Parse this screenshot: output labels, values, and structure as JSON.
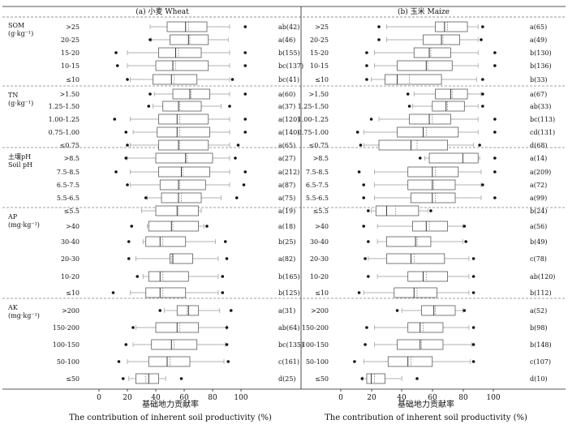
{
  "chart_data": {
    "type": "boxplot",
    "xlabel_cn": "基础地力贡献率",
    "xlabel_en": "The contribution of inherent soil productivity (%)",
    "x_range": [
      0,
      100
    ],
    "x_ticks": [
      "0",
      "20",
      "40",
      "60",
      "80",
      "100"
    ],
    "panels": [
      {
        "title": "(a) 小麦 Wheat",
        "groups": [
          {
            "name": "SOM",
            "unit": "(g·kg⁻¹)",
            "items": [
              {
                "cat": ">25",
                "ann": "ab(42)",
                "min": 36,
                "q1": 48,
                "med": 61,
                "mean": 63,
                "q3": 76,
                "max": 92,
                "out": [
                  103
                ]
              },
              {
                "cat": "20-25",
                "ann": "a(46)",
                "min": 37,
                "q1": 50,
                "med": 63,
                "mean": 64,
                "q3": 77,
                "max": 91,
                "out": [
                  36
                ]
              },
              {
                "cat": "15-20",
                "ann": "b(155)",
                "min": 20,
                "q1": 42,
                "med": 54,
                "mean": 56,
                "q3": 72,
                "max": 92,
                "out": [
                  12,
                  103
                ]
              },
              {
                "cat": "10-15",
                "ann": "bc(137)",
                "min": 20,
                "q1": 40,
                "med": 52,
                "mean": 54,
                "q3": 77,
                "max": 92,
                "out": [
                  13,
                  103
                ]
              },
              {
                "cat": "≤10",
                "ann": "bc(41)",
                "min": 22,
                "q1": 38,
                "med": 51,
                "mean": 53,
                "q3": 69,
                "max": 92,
                "out": [
                  20,
                  94
                ]
              }
            ]
          },
          {
            "name": "TN",
            "unit": "(g·kg⁻¹)",
            "items": [
              {
                "cat": ">1.50",
                "ann": "a(60)",
                "min": 39,
                "q1": 52,
                "med": 64,
                "mean": 65,
                "q3": 78,
                "max": 92,
                "out": [
                  36,
                  103
                ]
              },
              {
                "cat": "1.25-1.50",
                "ann": "a(37)",
                "min": 38,
                "q1": 45,
                "med": 56,
                "mean": 57,
                "q3": 72,
                "max": 86,
                "out": [
                  35,
                  92
                ]
              },
              {
                "cat": "1.00-1.25",
                "ann": "a(120)",
                "min": 22,
                "q1": 42,
                "med": 55,
                "mean": 57,
                "q3": 77,
                "max": 92,
                "out": [
                  11,
                  103
                ]
              },
              {
                "cat": "0.75-1.00",
                "ann": "a(140)",
                "min": 24,
                "q1": 41,
                "med": 55,
                "mean": 57,
                "q3": 78,
                "max": 92,
                "out": [
                  19,
                  103
                ]
              },
              {
                "cat": "≤0.75",
                "ann": "a(65)",
                "min": 22,
                "q1": 42,
                "med": 56,
                "mean": 57,
                "q3": 77,
                "max": 92,
                "out": [
                  20,
                  98
                ]
              }
            ]
          },
          {
            "name": "土壤pH",
            "unit": "Soil pH",
            "items": [
              {
                "cat": ">8.5",
                "ann": "a(27)",
                "min": 20,
                "q1": 40,
                "med": 61,
                "mean": 62,
                "q3": 80,
                "max": 92,
                "out": [
                  19,
                  96
                ]
              },
              {
                "cat": "7.5-8.5",
                "ann": "a(212)",
                "min": 22,
                "q1": 42,
                "med": 58,
                "mean": 59,
                "q3": 78,
                "max": 92,
                "out": [
                  12,
                  103
                ]
              },
              {
                "cat": "6.5-7.5",
                "ann": "a(87)",
                "min": 22,
                "q1": 43,
                "med": 56,
                "mean": 57,
                "q3": 75,
                "max": 92,
                "out": [
                  20,
                  102
                ]
              },
              {
                "cat": "5.5-6.5",
                "ann": "a(75)",
                "min": 34,
                "q1": 44,
                "med": 56,
                "mean": 58,
                "q3": 72,
                "max": 86,
                "out": [
                  33,
                  97
                ]
              },
              {
                "cat": "≤5.5",
                "ann": "a(19)",
                "min": 30,
                "q1": 40,
                "med": 55,
                "mean": 56,
                "q3": 70,
                "max": 72,
                "out": []
              }
            ]
          },
          {
            "name": "AP",
            "unit": "(mg·kg⁻¹)",
            "items": [
              {
                "cat": ">40",
                "ann": "a(18)",
                "min": 34,
                "q1": 35,
                "med": 51,
                "mean": 52,
                "q3": 70,
                "max": 74,
                "out": [
                  23,
                  76
                ]
              },
              {
                "cat": "30-40",
                "ann": "b(25)",
                "min": 31,
                "q1": 33,
                "med": 43,
                "mean": 45,
                "q3": 61,
                "max": 82,
                "out": [
                  21,
                  89
                ]
              },
              {
                "cat": "20-30",
                "ann": "a(82)",
                "min": 26,
                "q1": 50,
                "med": 52,
                "mean": 51,
                "q3": 66,
                "max": 84,
                "out": [
                  21,
                  90
                ]
              },
              {
                "cat": "10-20",
                "ann": "b(165)",
                "min": 31,
                "q1": 35,
                "med": 43,
                "mean": 45,
                "q3": 63,
                "max": 84,
                "out": [
                  27,
                  87
                ]
              },
              {
                "cat": "≤10",
                "ann": "b(125)",
                "min": 22,
                "q1": 33,
                "med": 43,
                "mean": 45,
                "q3": 61,
                "max": 84,
                "out": [
                  10,
                  87
                ]
              }
            ]
          },
          {
            "name": "AK",
            "unit": "(mg·kg⁻¹)",
            "items": [
              {
                "cat": ">200",
                "ann": "a(31)",
                "min": 46,
                "q1": 55,
                "med": 63,
                "mean": 62,
                "q3": 70,
                "max": 85,
                "out": [
                  43,
                  93
                ]
              },
              {
                "cat": "150-200",
                "ann": "ab(64)",
                "min": 26,
                "q1": 40,
                "med": 55,
                "mean": 57,
                "q3": 70,
                "max": 90,
                "out": [
                  24,
                  90
                ]
              },
              {
                "cat": "100-150",
                "ann": "bc(135)",
                "min": 24,
                "q1": 37,
                "med": 51,
                "mean": 53,
                "q3": 69,
                "max": 89,
                "out": [
                  19,
                  90
                ]
              },
              {
                "cat": "50-100",
                "ann": "c(161)",
                "min": 20,
                "q1": 35,
                "med": 48,
                "mean": 50,
                "q3": 64,
                "max": 88,
                "out": [
                  14,
                  91
                ]
              },
              {
                "cat": "≤50",
                "ann": "d(25)",
                "min": 21,
                "q1": 26,
                "med": 35,
                "mean": 33,
                "q3": 42,
                "max": 47,
                "out": [
                  17,
                  58
                ]
              }
            ]
          }
        ]
      },
      {
        "title": "(b) 玉米 Maize",
        "groups": [
          {
            "name": "SOM",
            "unit": "(g·kg⁻¹)",
            "items": [
              {
                "cat": ">25",
                "ann": "a(65)",
                "min": 30,
                "q1": 62,
                "med": 68,
                "mean": 70,
                "q3": 83,
                "max": 90,
                "out": [
                  25,
                  93
                ]
              },
              {
                "cat": "20-25",
                "ann": "a(49)",
                "min": 30,
                "q1": 54,
                "med": 66,
                "mean": 67,
                "q3": 78,
                "max": 90,
                "out": [
                  25,
                  92
                ]
              },
              {
                "cat": "15-20",
                "ann": "b(130)",
                "min": 22,
                "q1": 48,
                "med": 58,
                "mean": 59,
                "q3": 72,
                "max": 90,
                "out": [
                  17,
                  101
                ]
              },
              {
                "cat": "10-15",
                "ann": "b(136)",
                "min": 22,
                "q1": 37,
                "med": 56,
                "mean": 57,
                "q3": 73,
                "max": 90,
                "out": [
                  17,
                  101
                ]
              },
              {
                "cat": "≤10",
                "ann": "b(33)",
                "min": 20,
                "q1": 29,
                "med": 37,
                "mean": 45,
                "q3": 66,
                "max": 89,
                "out": [
                  17,
                  93
                ]
              }
            ]
          },
          {
            "name": "TN",
            "unit": "(g·kg⁻¹)",
            "items": [
              {
                "cat": ">1.50",
                "ann": "a(67)",
                "min": 48,
                "q1": 62,
                "med": 72,
                "mean": 73,
                "q3": 83,
                "max": 92,
                "out": [
                  44,
                  93
                ]
              },
              {
                "cat": "1.25-1.50",
                "ann": "ab(33)",
                "min": 47,
                "q1": 60,
                "med": 69,
                "mean": 70,
                "q3": 81,
                "max": 90,
                "out": [
                  45,
                  93
                ]
              },
              {
                "cat": "1.00-1.25",
                "ann": "bc(113)",
                "min": 25,
                "q1": 45,
                "med": 58,
                "mean": 60,
                "q3": 72,
                "max": 90,
                "out": [
                  20,
                  101
                ]
              },
              {
                "cat": "0.75-1.00",
                "ann": "cd(131)",
                "min": 15,
                "q1": 37,
                "med": 54,
                "mean": 56,
                "q3": 77,
                "max": 90,
                "out": [
                  11,
                  101
                ]
              },
              {
                "cat": "≤0.75",
                "ann": "d(68)",
                "min": 15,
                "q1": 25,
                "med": 46,
                "mean": 50,
                "q3": 70,
                "max": 87,
                "out": [
                  13,
                  91
                ]
              }
            ]
          },
          {
            "name": "土壤pH",
            "unit": "Soil pH",
            "items": [
              {
                "cat": ">8.5",
                "ann": "a(14)",
                "min": 55,
                "q1": 58,
                "med": 80,
                "mean": 80,
                "q3": 90,
                "max": 91,
                "out": [
                  52,
                  101
                ]
              },
              {
                "cat": "7.5-8.5",
                "ann": "a(209)",
                "min": 22,
                "q1": 44,
                "med": 60,
                "mean": 62,
                "q3": 77,
                "max": 92,
                "out": [
                  12,
                  101
                ]
              },
              {
                "cat": "6.5-7.5",
                "ann": "a(72)",
                "min": 22,
                "q1": 44,
                "med": 60,
                "mean": 61,
                "q3": 75,
                "max": 92,
                "out": [
                  15,
                  93
                ]
              },
              {
                "cat": "5.5-6.5",
                "ann": "a(99)",
                "min": 22,
                "q1": 46,
                "med": 60,
                "mean": 62,
                "q3": 75,
                "max": 92,
                "out": [
                  15,
                  101
                ]
              },
              {
                "cat": "≤5.5",
                "ann": "b(24)",
                "min": 20,
                "q1": 23,
                "med": 30,
                "mean": 36,
                "q3": 51,
                "max": 57,
                "out": [
                  18,
                  59
                ]
              }
            ]
          },
          {
            "name": "AP",
            "unit": "(mg·kg⁻¹)",
            "items": [
              {
                "cat": ">40",
                "ann": "a(56)",
                "min": 24,
                "q1": 47,
                "med": 56,
                "mean": 58,
                "q3": 70,
                "max": 80,
                "out": [
                  15,
                  81
                ]
              },
              {
                "cat": "30-40",
                "ann": "b(49)",
                "min": 24,
                "q1": 30,
                "med": 49,
                "mean": 50,
                "q3": 59,
                "max": 80,
                "out": [
                  18,
                  82
                ]
              },
              {
                "cat": "20-30",
                "ann": "c(78)",
                "min": 18,
                "q1": 30,
                "med": 46,
                "mean": 48,
                "q3": 68,
                "max": 84,
                "out": [
                  16,
                  87
                ]
              },
              {
                "cat": "10-20",
                "ann": "ab(120)",
                "min": 24,
                "q1": 44,
                "med": 54,
                "mean": 56,
                "q3": 70,
                "max": 84,
                "out": [
                  18,
                  87
                ]
              },
              {
                "cat": "≤10",
                "ann": "b(112)",
                "min": 15,
                "q1": 35,
                "med": 48,
                "mean": 50,
                "q3": 63,
                "max": 84,
                "out": [
                  12,
                  87
                ]
              }
            ]
          },
          {
            "name": "AK",
            "unit": "(mg·kg⁻¹)",
            "items": [
              {
                "cat": ">200",
                "ann": "a(52)",
                "min": 40,
                "q1": 53,
                "med": 61,
                "mean": 62,
                "q3": 75,
                "max": 80,
                "out": [
                  37,
                  81
                ]
              },
              {
                "cat": "150-200",
                "ann": "b(98)",
                "min": 22,
                "q1": 44,
                "med": 52,
                "mean": 54,
                "q3": 67,
                "max": 84,
                "out": [
                  17,
                  87
                ]
              },
              {
                "cat": "100-150",
                "ann": "b(148)",
                "min": 22,
                "q1": 37,
                "med": 52,
                "mean": 53,
                "q3": 67,
                "max": 86,
                "out": [
                  16,
                  87
                ]
              },
              {
                "cat": "50-100",
                "ann": "c(107)",
                "min": 15,
                "q1": 31,
                "med": 44,
                "mean": 46,
                "q3": 60,
                "max": 85,
                "out": [
                  9,
                  87
                ]
              },
              {
                "cat": "≤50",
                "ann": "d(10)",
                "min": 14,
                "q1": 17,
                "med": 20,
                "mean": 22,
                "q3": 29,
                "max": 40,
                "out": [
                  14,
                  50
                ]
              }
            ]
          }
        ]
      }
    ]
  }
}
